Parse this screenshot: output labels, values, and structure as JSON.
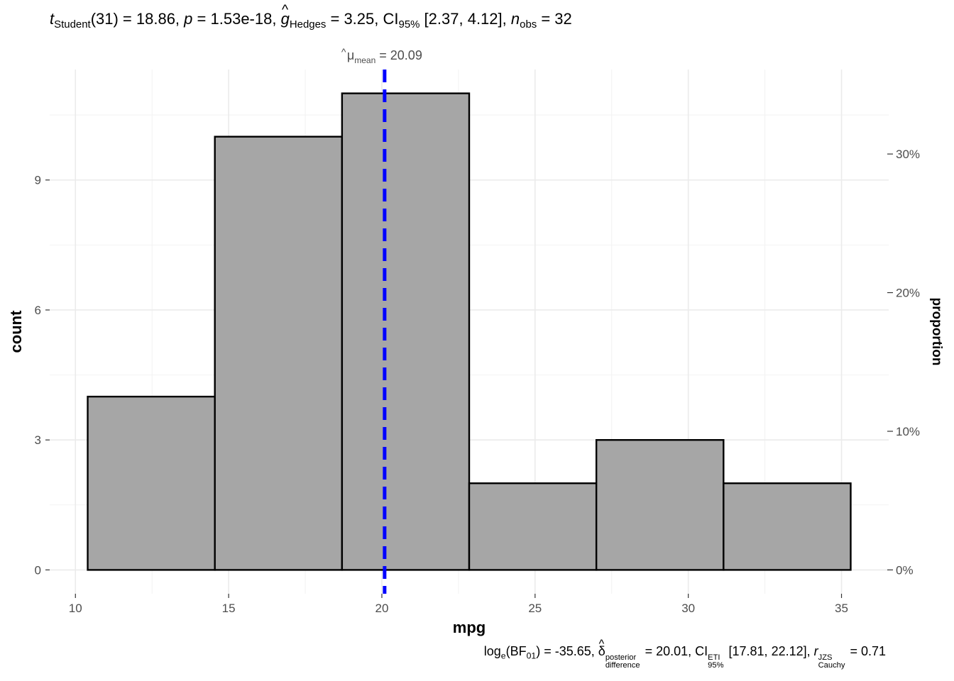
{
  "title": {
    "t_sym": "t",
    "t_sub": "Student",
    "df": "(31) = 18.86, ",
    "p_sym": "p",
    "p_val": " = 1.53e-18, ",
    "g_sym": "g",
    "g_sub": "Hedges",
    "g_val": " = 3.25, CI",
    "ci_sub": "95%",
    "ci_val": " [2.37, 4.12], ",
    "n_sym": "n",
    "n_sub": "obs",
    "n_val": " = 32"
  },
  "caption": {
    "log_pre": "log",
    "log_sub": "e",
    "bf_open": "(BF",
    "bf_sub": "01",
    "bf_val": ") = -35.65, ",
    "delta_sym": "δ",
    "delta_sup": "posterior",
    "delta_sub": "difference",
    "delta_val": " = 20.01, CI",
    "ci_sup": "ETI",
    "ci_sub": "95%",
    "ci_val": " [17.81, 22.12], ",
    "r_sym": "r",
    "r_sup": "JZS",
    "r_sub": "Cauchy",
    "r_val": " = 0.71"
  },
  "chart_data": {
    "type": "bar",
    "subtype": "histogram",
    "xlabel": "mpg",
    "ylabel": "count",
    "y2label": "proportion",
    "bins": [
      {
        "x0": 10.4,
        "x1": 14.55,
        "count": 4
      },
      {
        "x0": 14.55,
        "x1": 18.7,
        "count": 10
      },
      {
        "x0": 18.7,
        "x1": 22.85,
        "count": 11
      },
      {
        "x0": 22.85,
        "x1": 27.0,
        "count": 2
      },
      {
        "x0": 27.0,
        "x1": 31.15,
        "count": 3
      },
      {
        "x0": 31.15,
        "x1": 35.3,
        "count": 2
      }
    ],
    "xlim": [
      9.16,
      36.54
    ],
    "ylim": [
      -0.55,
      11.55
    ],
    "x_ticks": [
      10,
      15,
      20,
      25,
      30,
      35
    ],
    "y_ticks": [
      0,
      3,
      6,
      9
    ],
    "y2_ticks": [
      0,
      0.1,
      0.2,
      0.3
    ],
    "y2_tick_labels": [
      "0%",
      "10%",
      "20%",
      "30%"
    ],
    "n_total": 32,
    "mean_line": {
      "value": 20.09,
      "label_sym": "μ",
      "label_sub": "mean",
      "label_val": " = 20.09",
      "color": "#0000ff"
    },
    "bar_fill": "#a6a6a6",
    "bar_stroke": "#000000",
    "grid": true
  }
}
